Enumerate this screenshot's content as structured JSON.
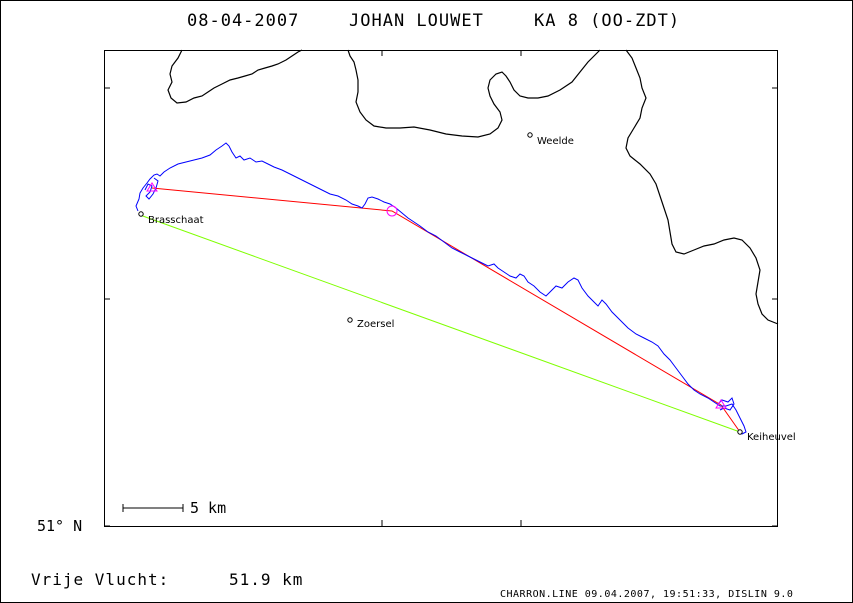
{
  "header": {
    "date": "08-04-2007",
    "pilot": "JOHAN LOUWET",
    "glider": "KA 8 (OO-ZDT)"
  },
  "map": {
    "places": [
      {
        "name": "Weelde"
      },
      {
        "name": "Brasschaat"
      },
      {
        "name": "Zoersel"
      },
      {
        "name": "Keiheuvel"
      }
    ],
    "scale_label": "5 km",
    "lat_label": "51° N"
  },
  "footer": {
    "flight_label": "Vrije Vlucht:",
    "flight_distance": "51.9 km",
    "credit": "CHARRON.LINE 09.04.2007, 19:51:33, DISLIN 9.0"
  },
  "colors": {
    "track": "#0000ff",
    "task_line": "#ff0000",
    "free_flight_line": "#7fff00",
    "turnpoint": "#ff00ff",
    "border": "#000000"
  }
}
